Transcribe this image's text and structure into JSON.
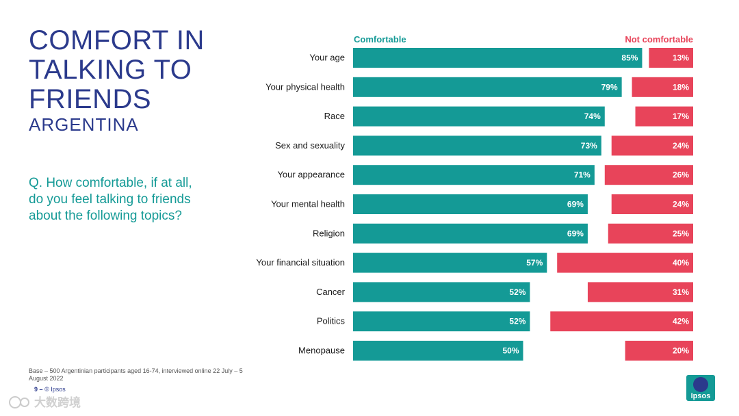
{
  "header": {
    "title": "COMFORT IN\nTALKING TO\nFRIENDS",
    "subtitle": "ARGENTINA",
    "question": "Q. How comfortable, if at all,\ndo you feel talking to friends\nabout the following topics?"
  },
  "legend": {
    "comfortable": "Comfortable",
    "not_comfortable": "Not comfortable"
  },
  "colors": {
    "comfortable": "#149a96",
    "not_comfortable": "#e8445a",
    "title": "#2b3a8c"
  },
  "chart_data": {
    "type": "bar",
    "orientation": "horizontal",
    "value_format": "{v}%",
    "xlim": [
      0,
      100
    ],
    "categories": [
      "Your age",
      "Your physical health",
      "Race",
      "Sex and sexuality",
      "Your appearance",
      "Your mental health",
      "Religion",
      "Your financial situation",
      "Cancer",
      "Politics",
      "Menopause"
    ],
    "series": [
      {
        "name": "Comfortable",
        "anchor": "left",
        "values": [
          85,
          79,
          74,
          73,
          71,
          69,
          69,
          57,
          52,
          52,
          50
        ]
      },
      {
        "name": "Not comfortable",
        "anchor": "right",
        "values": [
          13,
          18,
          17,
          24,
          26,
          24,
          25,
          40,
          31,
          42,
          20
        ]
      }
    ]
  },
  "footer": {
    "base": "Base – 500 Argentinian participants aged 16-74, interviewed online 22 July – 5 August 2022",
    "page": "9",
    "separator": "–",
    "copyright": "© Ipsos",
    "logo_text": "Ipsos",
    "watermark_text": "大数跨境"
  }
}
